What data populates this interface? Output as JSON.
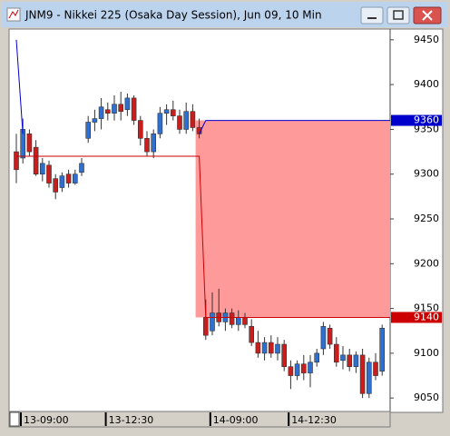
{
  "chart_data": {
    "type": "candlestick",
    "title": "JNM9 - Nikkei 225 (Osaka Day Session), Jun 09, 10 Min",
    "categories": [
      "13-09:00",
      null,
      null,
      null,
      null,
      null,
      null,
      null,
      null,
      null,
      null,
      null,
      null,
      "13-12:30",
      null,
      null,
      null,
      null,
      null,
      null,
      null,
      null,
      null,
      null,
      null,
      null,
      null,
      null,
      null,
      "14-09:00",
      null,
      null,
      null,
      null,
      null,
      null,
      null,
      null,
      null,
      null,
      null,
      "14-12:30",
      null,
      null,
      null,
      null,
      null,
      null,
      null,
      null,
      null,
      null,
      null,
      null,
      null,
      null,
      null
    ],
    "open": [
      9325,
      9318,
      9345,
      9330,
      9300,
      9310,
      9295,
      9285,
      9300,
      9290,
      9302,
      9340,
      9358,
      9362,
      9372,
      9368,
      9378,
      9372,
      9385,
      9360,
      9340,
      9325,
      9345,
      9368,
      9372,
      9365,
      9350,
      9370,
      9352,
      9140,
      9125,
      9145,
      9135,
      9145,
      9132,
      9140,
      9130,
      9112,
      9100,
      9112,
      9100,
      9110,
      9085,
      9075,
      9088,
      9078,
      9090,
      9105,
      9128,
      9110,
      9092,
      9098,
      9085,
      9098,
      9055,
      9090,
      9080
    ],
    "high": [
      9345,
      9362,
      9350,
      9338,
      9318,
      9315,
      9300,
      9302,
      9305,
      9305,
      9318,
      9365,
      9372,
      9385,
      9380,
      9388,
      9392,
      9390,
      9388,
      9365,
      9348,
      9350,
      9375,
      9378,
      9382,
      9372,
      9380,
      9378,
      9362,
      9160,
      9168,
      9172,
      9150,
      9150,
      9148,
      9145,
      9138,
      9125,
      9118,
      9120,
      9118,
      9115,
      9092,
      9092,
      9098,
      9098,
      9105,
      9135,
      9132,
      9118,
      9108,
      9105,
      9102,
      9105,
      9095,
      9100,
      9132
    ],
    "low": [
      9290,
      9312,
      9320,
      9298,
      9292,
      9285,
      9272,
      9280,
      9285,
      9288,
      9298,
      9335,
      9348,
      9350,
      9360,
      9360,
      9360,
      9365,
      9355,
      9332,
      9320,
      9318,
      9340,
      9355,
      9360,
      9345,
      9345,
      9348,
      9340,
      9115,
      9120,
      9130,
      9125,
      9128,
      9125,
      9128,
      9108,
      9095,
      9092,
      9095,
      9092,
      9080,
      9060,
      9070,
      9070,
      9062,
      9085,
      9098,
      9105,
      9085,
      9082,
      9080,
      9078,
      9050,
      9050,
      9070,
      9075
    ],
    "close": [
      9305,
      9350,
      9325,
      9300,
      9312,
      9290,
      9280,
      9298,
      9290,
      9300,
      9312,
      9358,
      9362,
      9375,
      9368,
      9378,
      9370,
      9385,
      9360,
      9340,
      9325,
      9345,
      9368,
      9372,
      9365,
      9350,
      9370,
      9352,
      9345,
      9120,
      9145,
      9135,
      9145,
      9132,
      9140,
      9132,
      9112,
      9100,
      9112,
      9100,
      9110,
      9085,
      9075,
      9088,
      9078,
      9090,
      9100,
      9130,
      9110,
      9090,
      9098,
      9085,
      9098,
      9055,
      9090,
      9075,
      9128
    ],
    "up_color": "#2f6fd0",
    "down_color": "#c81e1e",
    "lines": [
      {
        "color": "#0000cc",
        "values": [
          9450,
          9345,
          null,
          null,
          null,
          null,
          null,
          null,
          null,
          null,
          null,
          null,
          null,
          null,
          null,
          null,
          null,
          null,
          null,
          null,
          null,
          null,
          null,
          null,
          null,
          null,
          null,
          null,
          9345,
          9360,
          9360,
          9360,
          9360,
          9360,
          9360,
          9360,
          9360,
          9360,
          9360,
          9360,
          9360,
          9360,
          9360,
          9360,
          9360,
          9360,
          9360,
          9360,
          9360,
          9360,
          9360,
          9360,
          9360,
          9360,
          9360,
          9360,
          9360
        ]
      },
      {
        "color": "#cc0000",
        "values": [
          9320,
          9320,
          9320,
          9320,
          9320,
          9320,
          9320,
          9320,
          9320,
          9320,
          9320,
          9320,
          9320,
          9320,
          9320,
          9320,
          9320,
          9320,
          9320,
          9320,
          9320,
          9320,
          9320,
          9320,
          9320,
          9320,
          9320,
          9320,
          9320,
          9140,
          9140,
          9140,
          9140,
          9140,
          9140,
          9140,
          9140,
          9140,
          9140,
          9140,
          9140,
          9140,
          9140,
          9140,
          9140,
          9140,
          9140,
          9140,
          9140,
          9140,
          9140,
          9140,
          9140,
          9140,
          9140,
          9140,
          9140
        ]
      }
    ],
    "band": {
      "upper": 9360,
      "lower": 9140,
      "color": "#ff9a9a"
    },
    "price_labels": [
      {
        "value": 9360,
        "color": "#0000cc"
      },
      {
        "value": 9140,
        "color": "#cc0000"
      }
    ],
    "ylim": [
      9036,
      9462
    ],
    "yticks": [
      9050,
      9100,
      9150,
      9200,
      9250,
      9300,
      9350,
      9400,
      9450
    ]
  }
}
